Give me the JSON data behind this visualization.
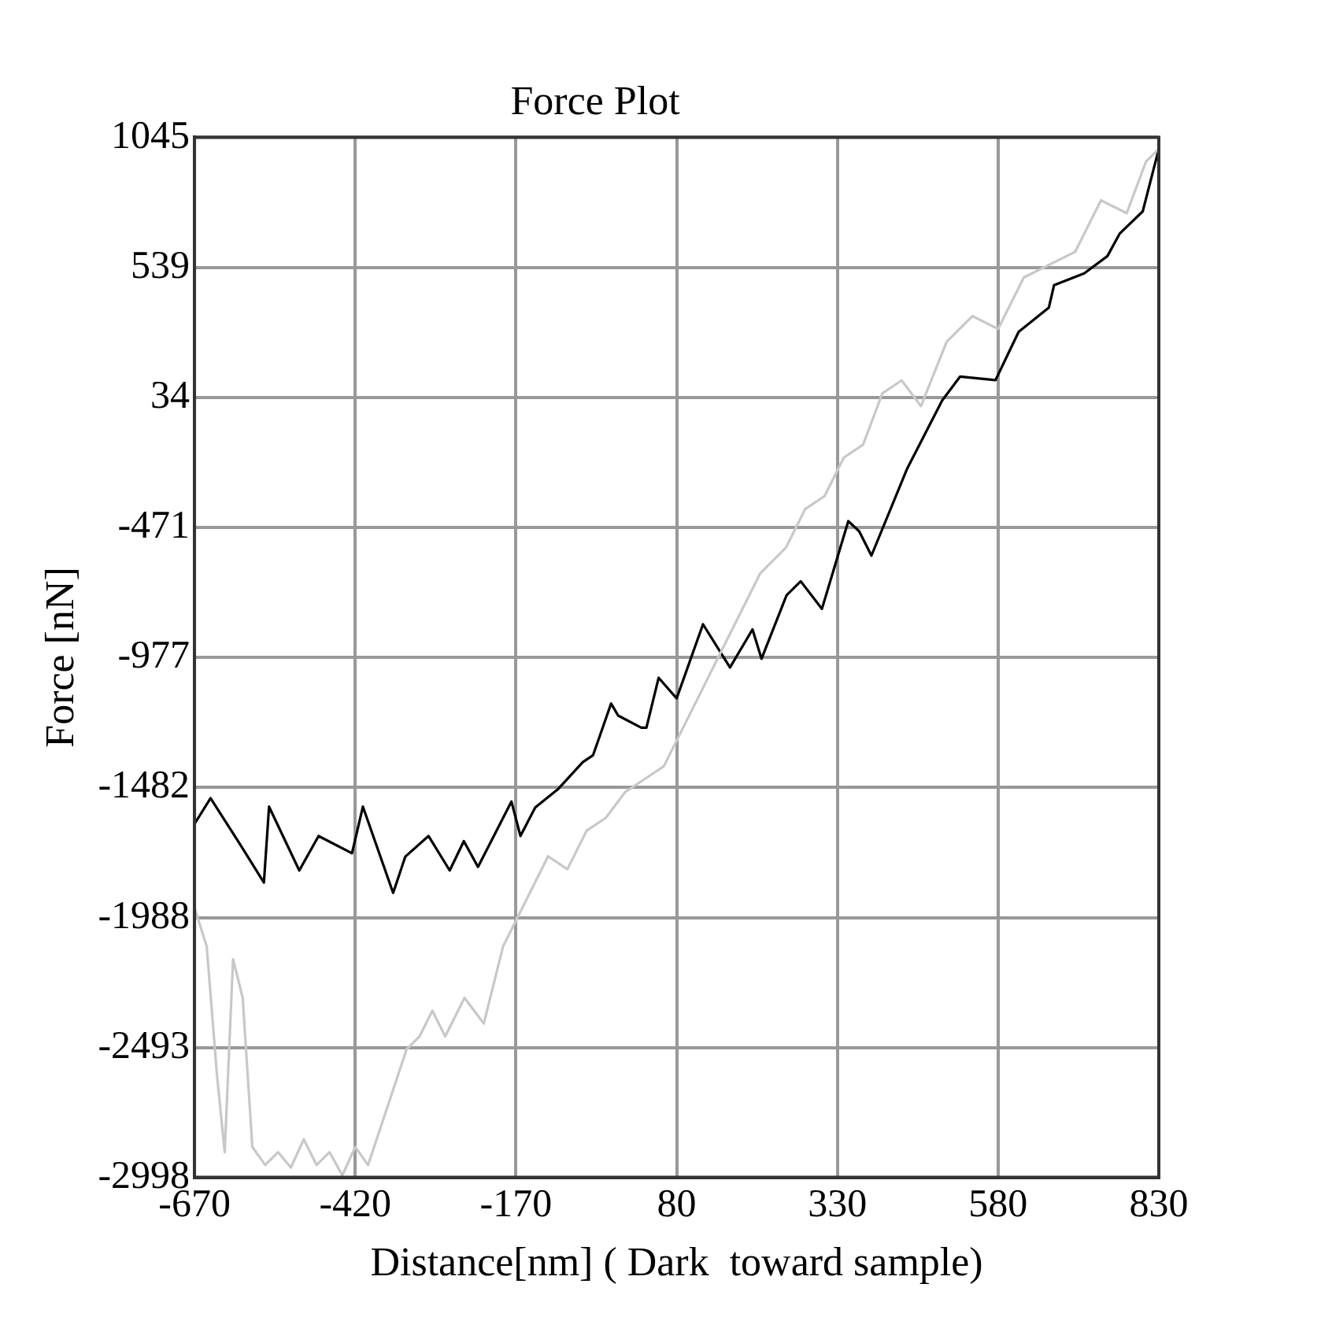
{
  "chart_data": {
    "type": "line",
    "title": "Force Plot",
    "xlabel": "Distance[nm] ( Dark  toward sample)",
    "ylabel": "Force [nN]",
    "xlim": [
      -670,
      830
    ],
    "xticks": [
      -670,
      -420,
      -170,
      80,
      330,
      580,
      830
    ],
    "ylim": [
      -2998,
      1045
    ],
    "yticks": [
      -2998,
      -2493,
      -1988,
      -1482,
      -977,
      -471,
      34,
      539,
      1045
    ],
    "grid": true,
    "marker": "none",
    "line_style": "solid",
    "series": [
      {
        "color": "#c8c8c8",
        "x": [
          -670,
          -651,
          -635,
          -623,
          -610,
          -595,
          -580,
          -560,
          -540,
          -520,
          -500,
          -480,
          -460,
          -440,
          -420,
          -400,
          -380,
          -360,
          -340,
          -320,
          -300,
          -280,
          -250,
          -220,
          -190,
          -170,
          -150,
          -120,
          -90,
          -60,
          -30,
          0,
          30,
          60,
          90,
          120,
          150,
          180,
          210,
          250,
          280,
          310,
          340,
          370,
          400,
          430,
          460,
          500,
          540,
          580,
          620,
          660,
          700,
          740,
          780,
          810,
          830
        ],
        "values": [
          -1950,
          -2100,
          -2600,
          -2900,
          -2150,
          -2300,
          -2880,
          -2950,
          -2900,
          -2960,
          -2850,
          -2950,
          -2900,
          -2990,
          -2880,
          -2950,
          -2800,
          -2650,
          -2500,
          -2450,
          -2350,
          -2450,
          -2300,
          -2400,
          -2100,
          -2000,
          -1900,
          -1750,
          -1800,
          -1650,
          -1600,
          -1500,
          -1450,
          -1400,
          -1250,
          -1100,
          -950,
          -800,
          -650,
          -550,
          -400,
          -350,
          -200,
          -150,
          50,
          100,
          0,
          250,
          350,
          300,
          500,
          550,
          600,
          800,
          750,
          950,
          1000
        ]
      },
      {
        "color": "#000000",
        "x": [
          -670,
          -645,
          -600,
          -562,
          -554,
          -507,
          -477,
          -425,
          -408,
          -361,
          -342,
          -306,
          -273,
          -251,
          -229,
          -200,
          -177,
          -163,
          -140,
          -105,
          -66,
          -50,
          -22,
          -11,
          25,
          33,
          52,
          80,
          121,
          163,
          198,
          212,
          251,
          273,
          306,
          347,
          364,
          383,
          438,
          493,
          521,
          576,
          612,
          659,
          667,
          714,
          750,
          769,
          805,
          830
        ],
        "values": [
          -1624,
          -1524,
          -1700,
          -1852,
          -1557,
          -1805,
          -1671,
          -1738,
          -1557,
          -1892,
          -1751,
          -1671,
          -1805,
          -1691,
          -1791,
          -1650,
          -1537,
          -1671,
          -1560,
          -1490,
          -1384,
          -1357,
          -1156,
          -1203,
          -1250,
          -1250,
          -1056,
          -1136,
          -848,
          -1016,
          -868,
          -982,
          -735,
          -681,
          -788,
          -447,
          -487,
          -581,
          -246,
          22,
          115,
          101,
          289,
          383,
          470,
          516,
          583,
          670,
          757,
          1000
        ]
      }
    ]
  }
}
